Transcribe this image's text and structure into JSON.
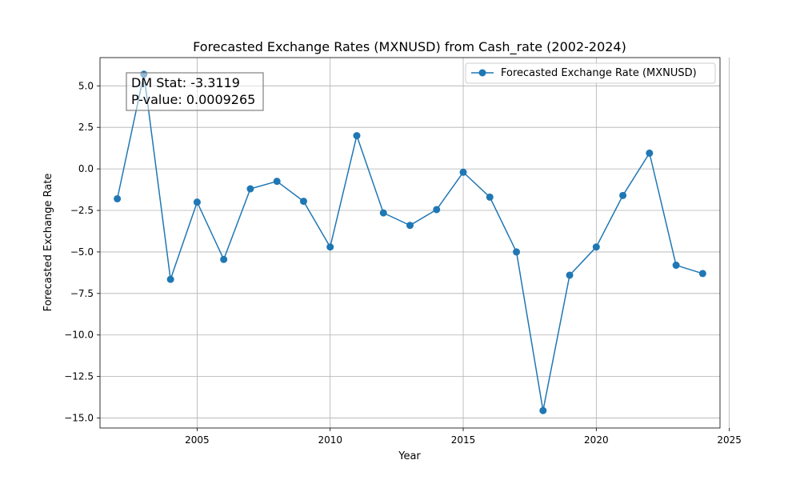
{
  "chart_data": {
    "type": "line",
    "title": "Forecasted Exchange Rates (MXNUSD) from Cash_rate (2002-2024)",
    "xlabel": "Year",
    "ylabel": "Forecasted Exchange Rate",
    "xlim": [
      2001.35,
      2024.65
    ],
    "ylim": [
      -15.6,
      6.7
    ],
    "xticks": [
      2005,
      2010,
      2015,
      2020,
      2025
    ],
    "yticks": [
      5.0,
      2.5,
      0.0,
      -2.5,
      -5.0,
      -7.5,
      -10.0,
      -12.5,
      -15.0
    ],
    "xtick_labels": [
      "2005",
      "2010",
      "2015",
      "2020",
      "2025"
    ],
    "ytick_labels": [
      "5.0",
      "2.5",
      "0.0",
      "−2.5",
      "−5.0",
      "−7.5",
      "−10.0",
      "−12.5",
      "−15.0"
    ],
    "grid": true,
    "legend_position": "top-right",
    "series": [
      {
        "name": "Forecasted Exchange Rate (MXNUSD)",
        "color": "#1f77b4",
        "marker": "circle",
        "x": [
          2002,
          2003,
          2004,
          2005,
          2006,
          2007,
          2008,
          2009,
          2010,
          2011,
          2012,
          2013,
          2014,
          2015,
          2016,
          2017,
          2018,
          2019,
          2020,
          2021,
          2022,
          2023,
          2024
        ],
        "y": [
          -1.8,
          5.7,
          -6.65,
          -2.0,
          -5.45,
          -1.2,
          -0.75,
          -1.95,
          -4.7,
          2.0,
          -2.65,
          -3.4,
          -2.45,
          -0.2,
          -1.7,
          -5.0,
          -14.55,
          -6.4,
          -4.7,
          -1.6,
          0.95,
          -5.8,
          -6.3
        ]
      }
    ],
    "annotations": [
      {
        "lines": [
          "DM Stat: -3.3119",
          "P-value: 0.0009265"
        ],
        "position": "top-left"
      }
    ]
  }
}
